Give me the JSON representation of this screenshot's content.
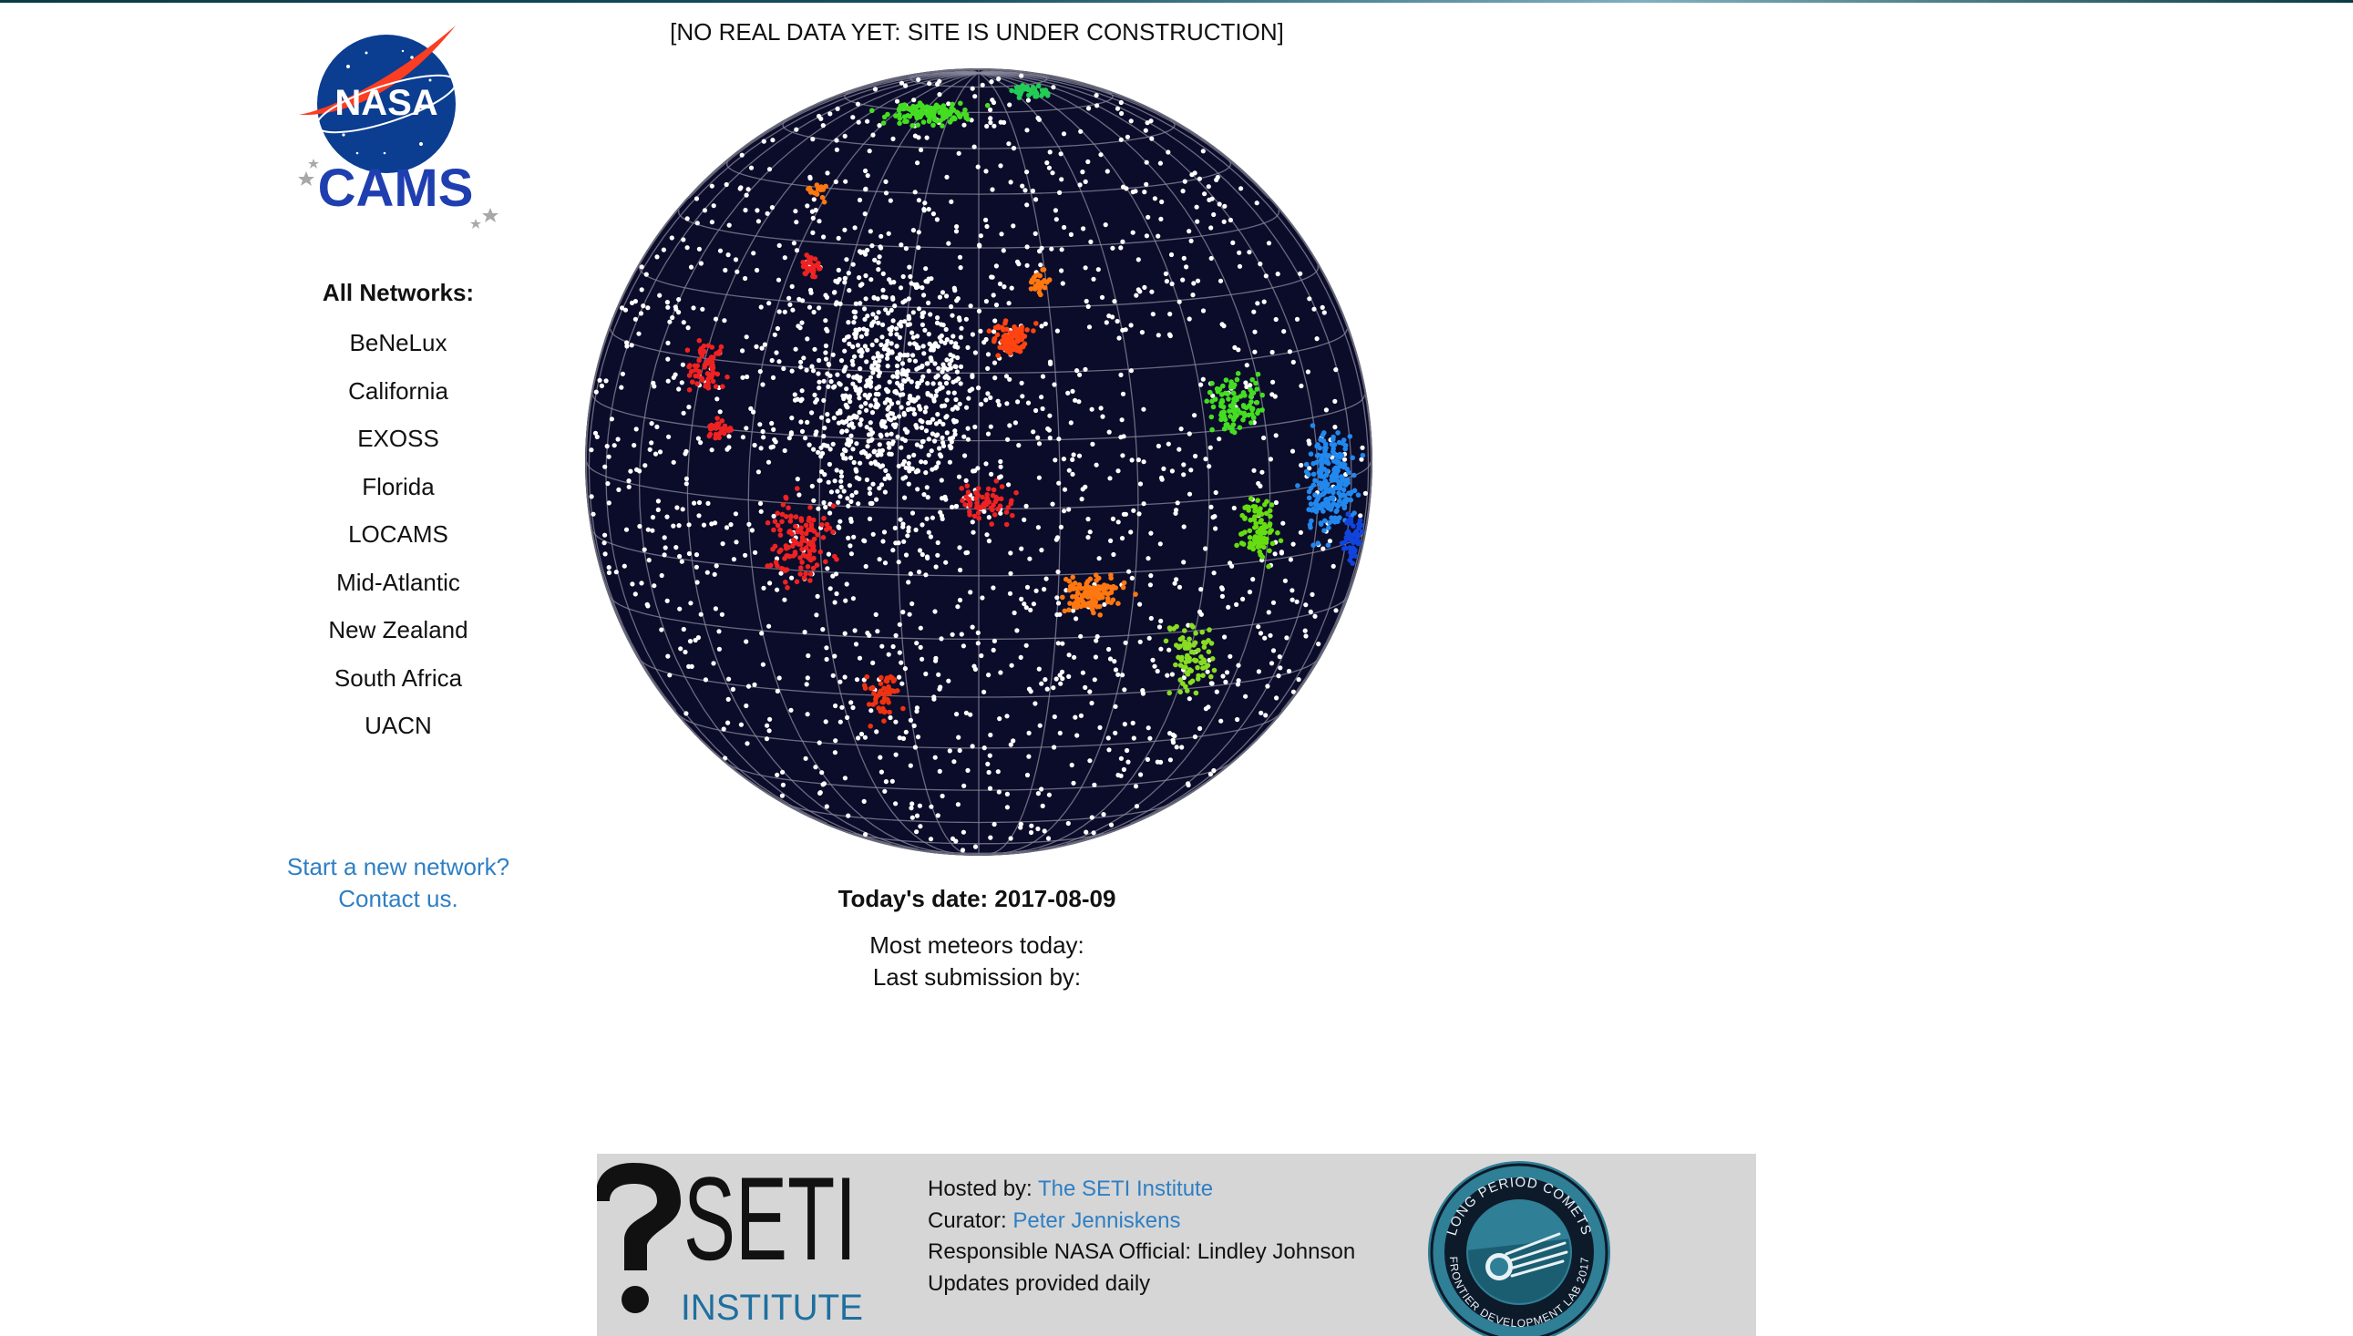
{
  "header": {
    "notice": "[NO REAL DATA YET: SITE IS UNDER CONSTRUCTION]"
  },
  "logo": {
    "nasa": "NASA",
    "cams": "CAMS"
  },
  "sidebar": {
    "title": "All Networks:",
    "networks": [
      "BeNeLux",
      "California",
      "EXOSS",
      "Florida",
      "LOCAMS",
      "Mid-Atlantic",
      "New Zealand",
      "South Africa",
      "UACN"
    ],
    "start_network": "Start a new network?",
    "contact": "Contact us."
  },
  "stats": {
    "todays_date": "Today's date: 2017-08-09",
    "most_meteors": "Most meteors today:",
    "last_submission": "Last submission by:"
  },
  "footer": {
    "hosted_label": "Hosted by: ",
    "hosted_link": "The SETI Institute",
    "curator_label": "Curator: ",
    "curator_link": "Peter Jenniskens",
    "official": "Responsible NASA Official: Lindley Johnson",
    "updates": "Updates provided daily",
    "seti_big": "SETI",
    "seti_small": "INSTITUTE",
    "badge_top": "LONG PERIOD COMETS",
    "badge_bottom": "FRONTIER DEVELOPMENT LAB 2017"
  },
  "colors": {
    "link": "#2e7fc4",
    "globe_bg": "#0b0c2a",
    "nasa_blue": "#0b3d91",
    "nasa_red": "#fc3d21",
    "cams_blue": "#1f3fb0",
    "seti_teal": "#1e6fa0",
    "badge_teal": "#2f7f96",
    "footer_bg": "#d6d6d6"
  },
  "icons": {
    "nasa_logo": "nasa-meatball-logo",
    "globe": "meteor-radiant-sky-globe",
    "seti_logo": "seti-institute-logo",
    "badge": "fdl-long-period-comets-badge"
  }
}
